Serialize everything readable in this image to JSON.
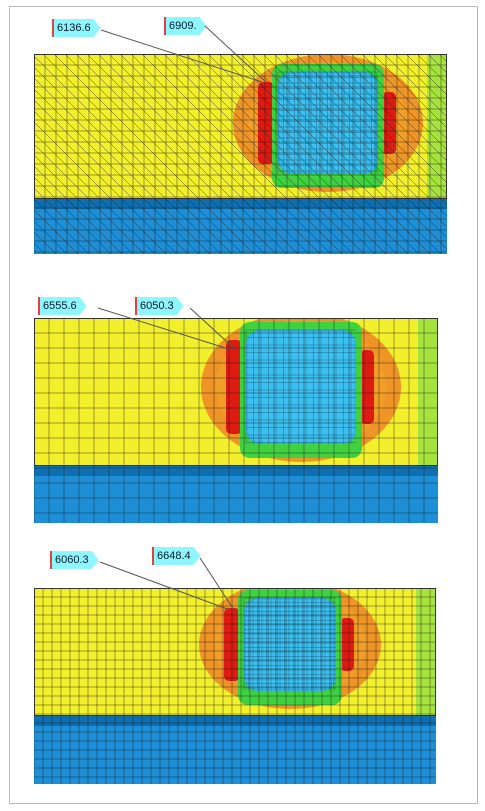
{
  "panels": [
    {
      "mesh": "triangular",
      "labels": [
        "6136.6",
        "6909."
      ]
    },
    {
      "mesh": "quad-coarse",
      "labels": [
        "6555.6",
        "6050.3"
      ]
    },
    {
      "mesh": "quad-fine",
      "labels": [
        "6060.3",
        "6648.4"
      ]
    }
  ],
  "colors": {
    "yellow": "#f2ef2c",
    "orange": "#ee8a26",
    "red": "#dd1b12",
    "green": "#3fd140",
    "lightgreen": "#a6e33d",
    "cyan": "#32b5e8",
    "blue": "#1e8fd6",
    "darkblue": "#0f6fb0",
    "callout": "#8ef6ff"
  }
}
